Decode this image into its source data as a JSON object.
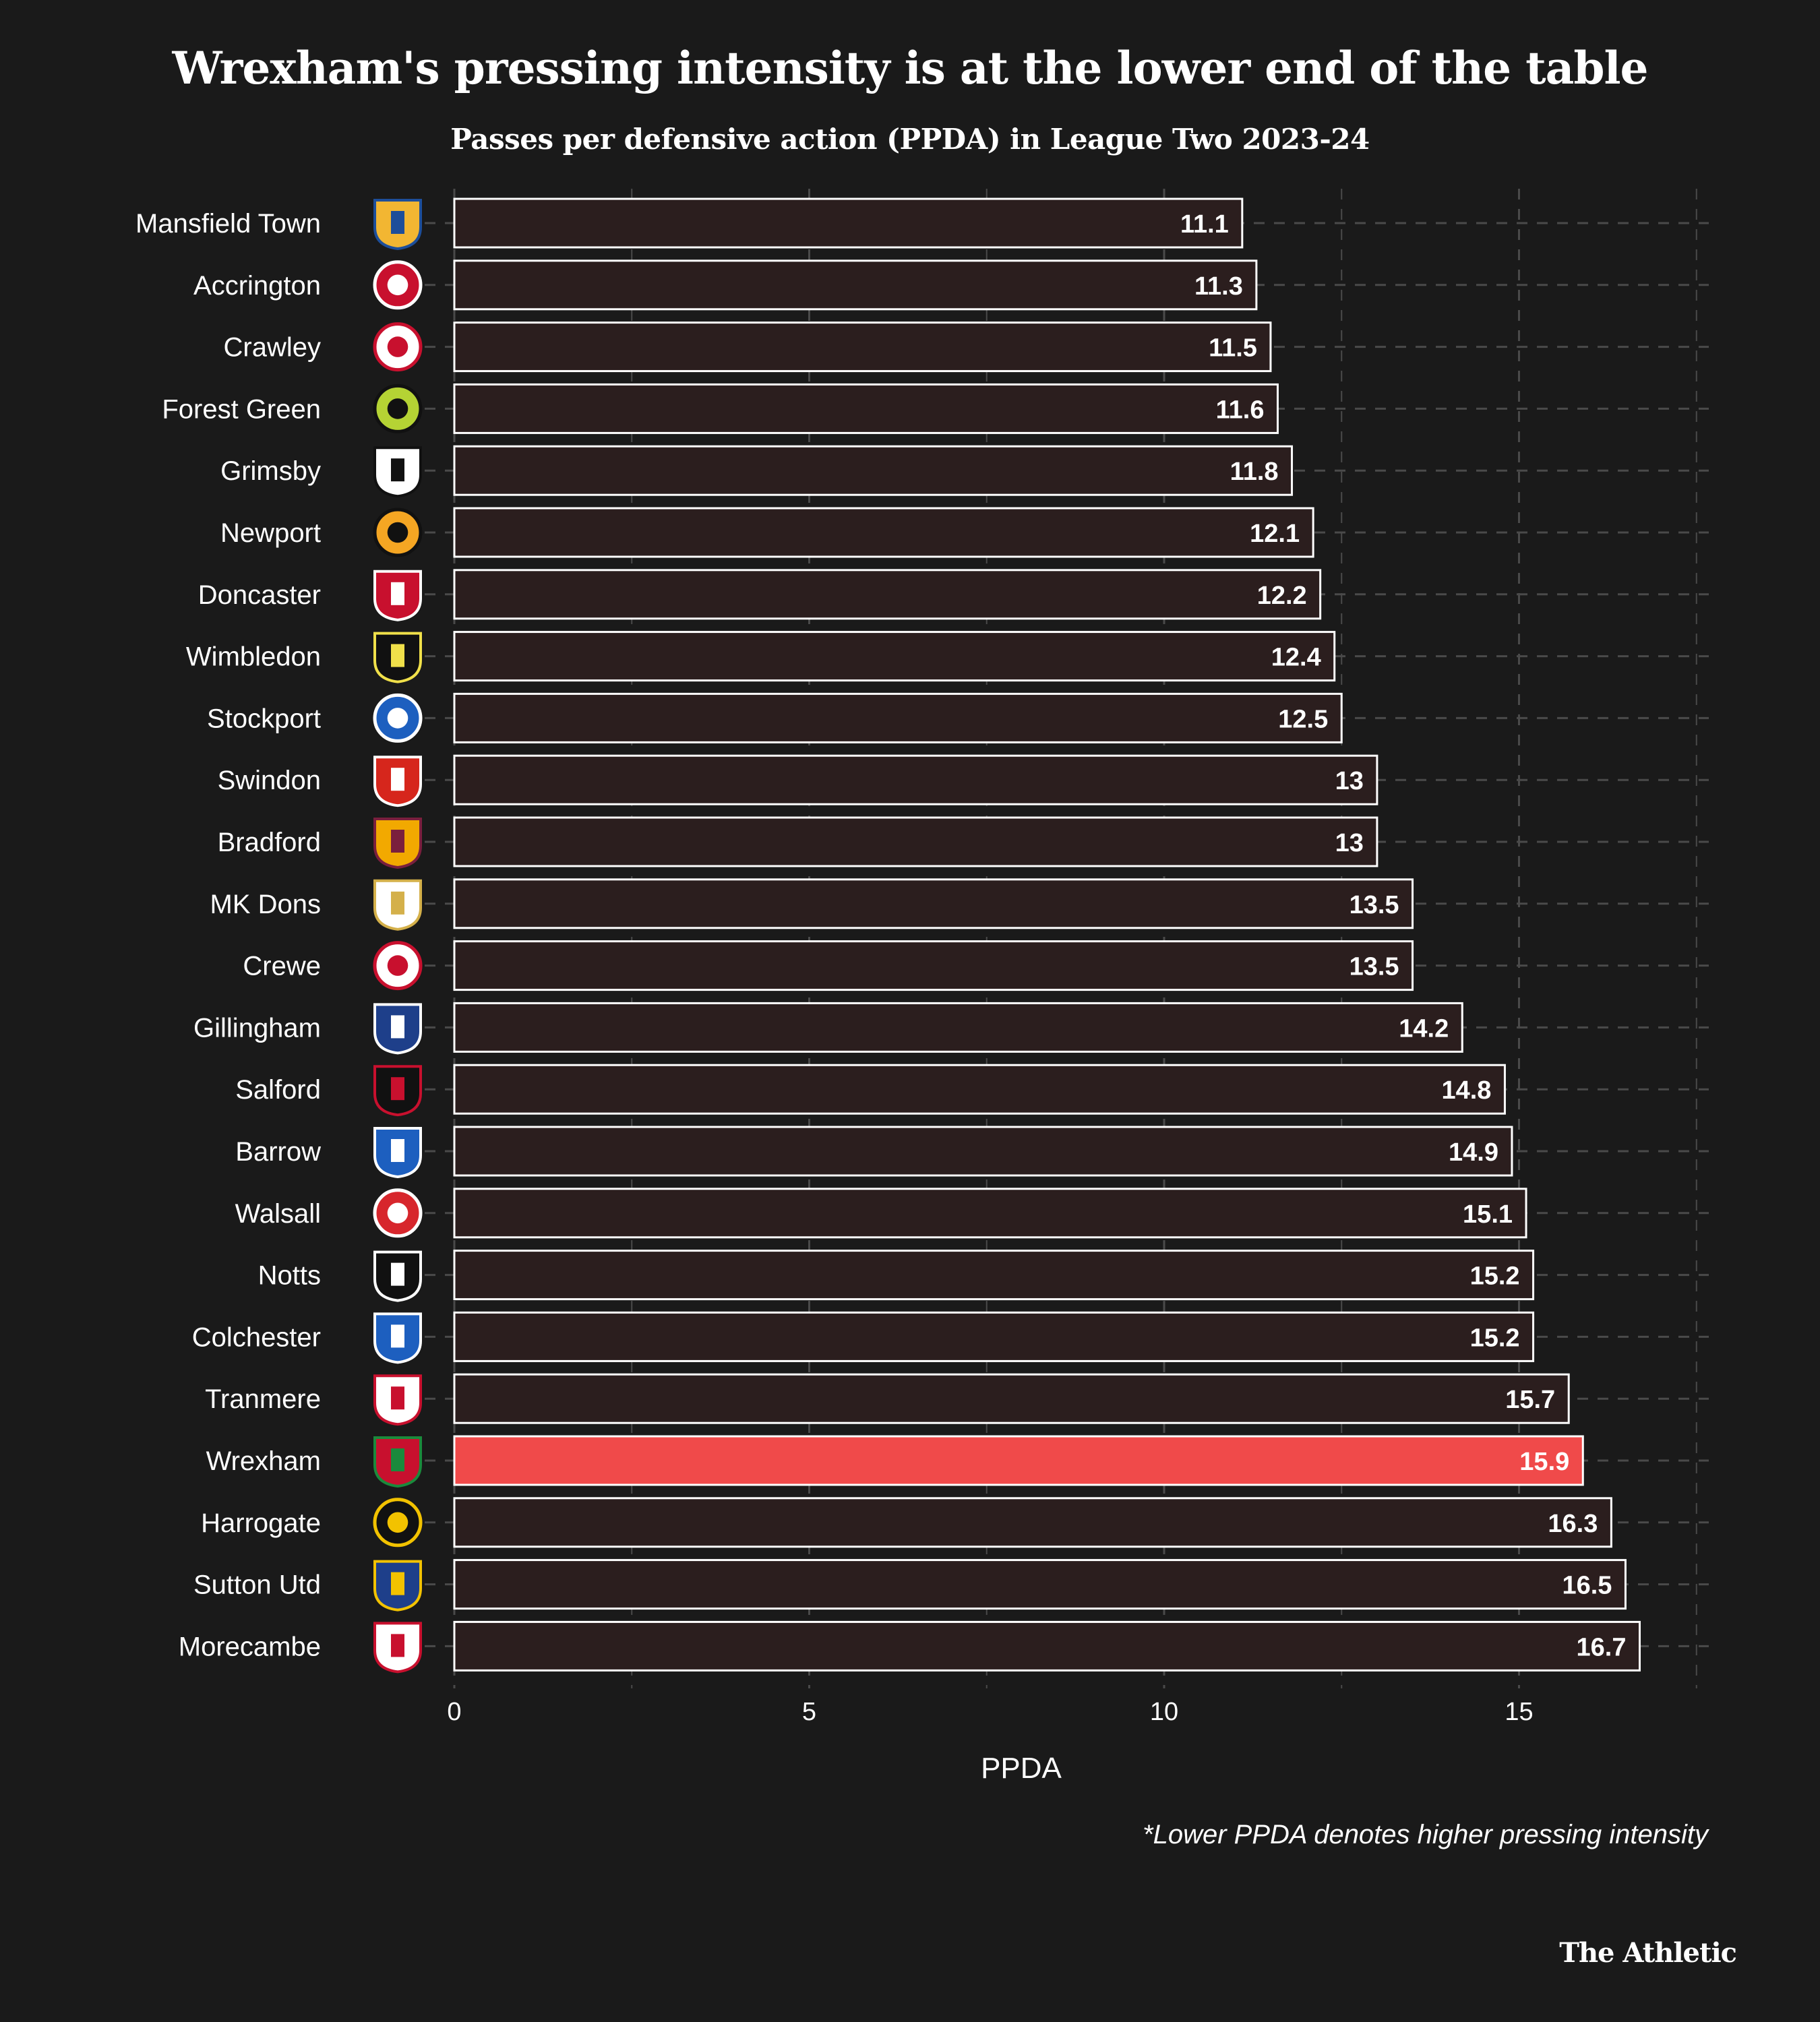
{
  "chart_data": {
    "type": "bar",
    "orientation": "horizontal",
    "title": "Wrexham's pressing intensity is at the lower end of the table",
    "subtitle": "Passes per defensive action (PPDA) in League Two 2023-24",
    "xlabel": "PPDA",
    "ylabel": "",
    "xlim": [
      0,
      17.7
    ],
    "xticks": [
      0,
      5,
      10,
      15
    ],
    "grid": true,
    "highlight": "Wrexham",
    "categories": [
      "Mansfield Town",
      "Accrington",
      "Crawley",
      "Forest Green",
      "Grimsby",
      "Newport",
      "Doncaster",
      "Wimbledon",
      "Stockport",
      "Swindon",
      "Bradford",
      "MK Dons",
      "Crewe",
      "Gillingham",
      "Salford",
      "Barrow",
      "Walsall",
      "Notts",
      "Colchester",
      "Tranmere",
      "Wrexham",
      "Harrogate",
      "Sutton Utd",
      "Morecambe"
    ],
    "values": [
      11.1,
      11.3,
      11.5,
      11.6,
      11.8,
      12.1,
      12.2,
      12.4,
      12.5,
      13,
      13,
      13.5,
      13.5,
      14.2,
      14.8,
      14.9,
      15.1,
      15.2,
      15.2,
      15.7,
      15.9,
      16.3,
      16.5,
      16.7
    ],
    "value_labels": [
      "11.1",
      "11.3",
      "11.5",
      "11.6",
      "11.8",
      "12.1",
      "12.2",
      "12.4",
      "12.5",
      "13",
      "13",
      "13.5",
      "13.5",
      "14.2",
      "14.8",
      "14.9",
      "15.1",
      "15.2",
      "15.2",
      "15.7",
      "15.9",
      "16.3",
      "16.5",
      "16.7"
    ],
    "badges": [
      {
        "shape": "shield",
        "colors": [
          "#f2b632",
          "#1d4e9a"
        ]
      },
      {
        "shape": "circle",
        "colors": [
          "#c8102e",
          "#ffffff"
        ]
      },
      {
        "shape": "circle",
        "colors": [
          "#ffffff",
          "#c8102e"
        ]
      },
      {
        "shape": "circle",
        "colors": [
          "#b5d334",
          "#111111"
        ]
      },
      {
        "shape": "shield",
        "colors": [
          "#ffffff",
          "#111111"
        ]
      },
      {
        "shape": "circle",
        "colors": [
          "#f5a623",
          "#111111"
        ]
      },
      {
        "shape": "shield",
        "colors": [
          "#c8102e",
          "#ffffff"
        ]
      },
      {
        "shape": "shield",
        "colors": [
          "#111111",
          "#f0e04a"
        ]
      },
      {
        "shape": "circle",
        "colors": [
          "#1d5fbf",
          "#ffffff"
        ]
      },
      {
        "shape": "shield",
        "colors": [
          "#d6261c",
          "#ffffff"
        ]
      },
      {
        "shape": "shield",
        "colors": [
          "#f2a900",
          "#7a1f3d"
        ]
      },
      {
        "shape": "shield",
        "colors": [
          "#ffffff",
          "#d4b04a"
        ]
      },
      {
        "shape": "circle",
        "colors": [
          "#ffffff",
          "#c8102e"
        ]
      },
      {
        "shape": "shield",
        "colors": [
          "#1e3f8a",
          "#ffffff"
        ]
      },
      {
        "shape": "shield",
        "colors": [
          "#111111",
          "#c8102e"
        ]
      },
      {
        "shape": "shield",
        "colors": [
          "#1d5fbf",
          "#ffffff"
        ]
      },
      {
        "shape": "circle",
        "colors": [
          "#d7262c",
          "#ffffff"
        ]
      },
      {
        "shape": "shield",
        "colors": [
          "#111111",
          "#ffffff"
        ]
      },
      {
        "shape": "shield",
        "colors": [
          "#1d5fbf",
          "#ffffff"
        ]
      },
      {
        "shape": "shield",
        "colors": [
          "#ffffff",
          "#c8102e"
        ]
      },
      {
        "shape": "shield",
        "colors": [
          "#c8102e",
          "#1a8a3c"
        ]
      },
      {
        "shape": "circle",
        "colors": [
          "#111111",
          "#f2c200"
        ]
      },
      {
        "shape": "shield",
        "colors": [
          "#1e3f8a",
          "#f2c200"
        ]
      },
      {
        "shape": "shield",
        "colors": [
          "#ffffff",
          "#c8102e"
        ]
      }
    ]
  },
  "colors": {
    "background": "#1a1a1a",
    "bar_fill": "#2b1e1e",
    "bar_stroke": "#ffffff",
    "highlight_fill": "#f04a4a",
    "grid": "#4a4a4a",
    "text": "#ffffff"
  },
  "footnote": "*Lower PPDA denotes higher pressing intensity",
  "brand": "The Athletic"
}
